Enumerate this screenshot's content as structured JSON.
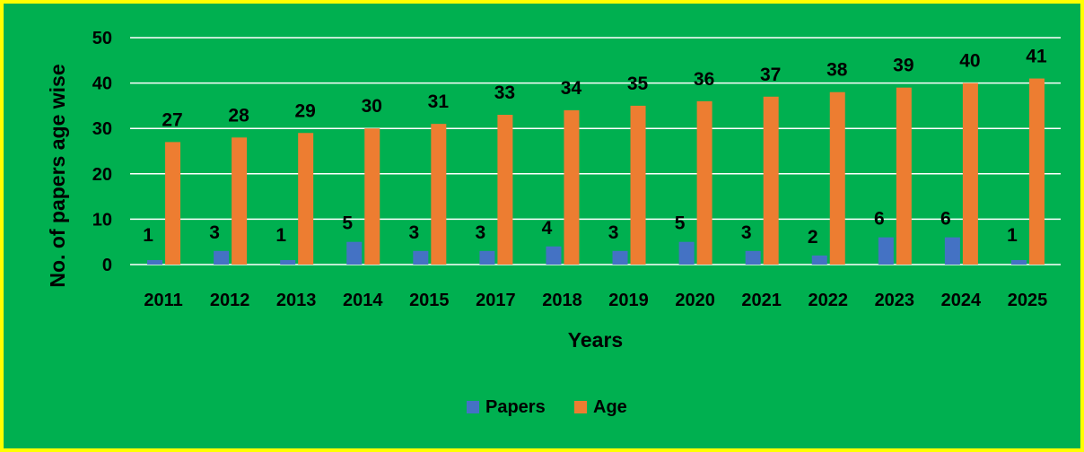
{
  "chart_data": {
    "type": "bar",
    "categories": [
      "2011",
      "2012",
      "2013",
      "2014",
      "2015",
      "2017",
      "2018",
      "2019",
      "2020",
      "2021",
      "2022",
      "2023",
      "2024",
      "2025"
    ],
    "series": [
      {
        "name": "Papers",
        "values": [
          1,
          3,
          1,
          5,
          3,
          3,
          4,
          3,
          5,
          3,
          2,
          6,
          6,
          1
        ],
        "color": "#4472c4"
      },
      {
        "name": "Age",
        "values": [
          27,
          28,
          29,
          30,
          31,
          33,
          34,
          35,
          36,
          37,
          38,
          39,
          40,
          41
        ],
        "color": "#ed7d31"
      }
    ],
    "xlabel": "Years",
    "ylabel": "No. of papers age wise",
    "ylim": [
      0,
      50
    ],
    "yticks": [
      0,
      10,
      20,
      30,
      40,
      50
    ],
    "grid": true,
    "legend": "bottom",
    "data_labels": true,
    "background_color": "#00b050",
    "border_color": "#ffff00",
    "gridline_color": "#ffffff"
  }
}
